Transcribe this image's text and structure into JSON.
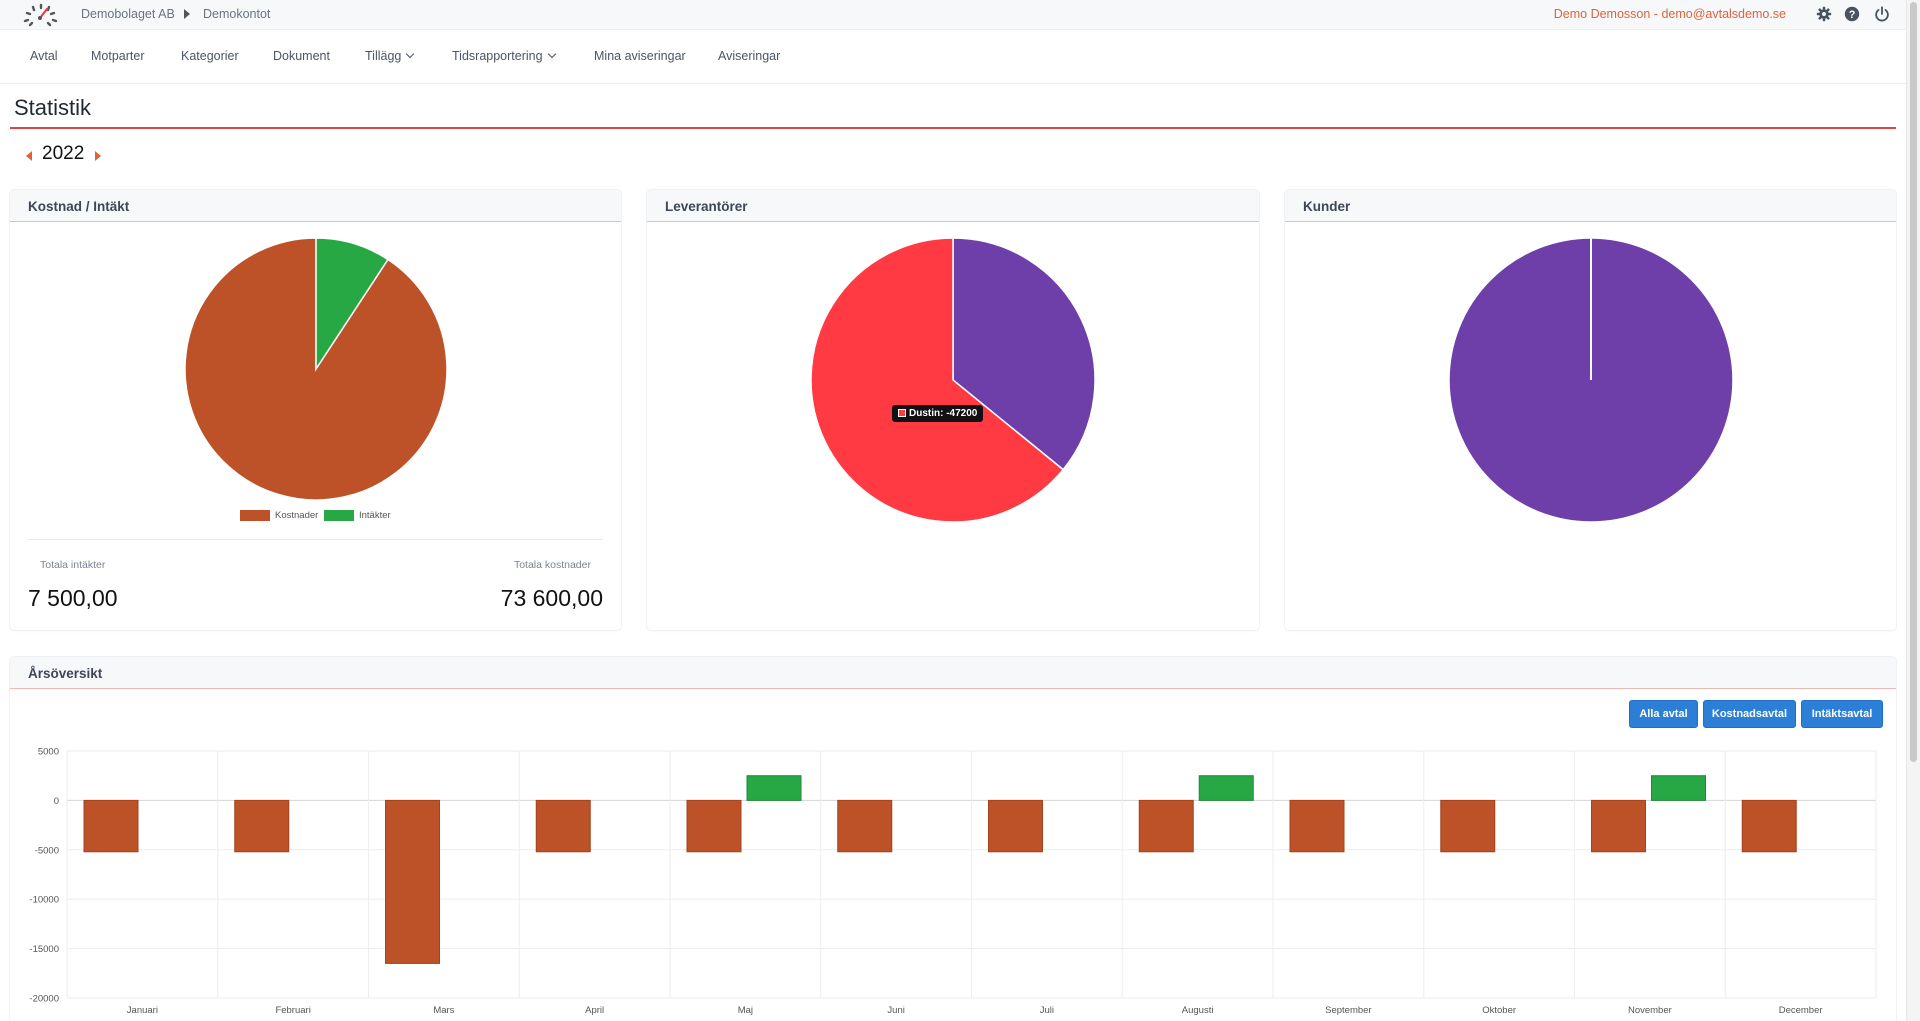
{
  "topbar": {
    "company": "Demobolaget AB",
    "account": "Demokontot",
    "user": "Demo Demosson - demo@avtalsdemo.se",
    "icons": [
      "gear-icon",
      "help-icon",
      "power-icon"
    ]
  },
  "nav": {
    "items": [
      {
        "label": "Avtal",
        "dropdown": false
      },
      {
        "label": "Motparter",
        "dropdown": false
      },
      {
        "label": "Kategorier",
        "dropdown": false
      },
      {
        "label": "Dokument",
        "dropdown": false
      },
      {
        "label": "Tillägg",
        "dropdown": true
      },
      {
        "label": "Tidsrapportering",
        "dropdown": true
      },
      {
        "label": "Mina aviseringar",
        "dropdown": false
      },
      {
        "label": "Aviseringar",
        "dropdown": false
      }
    ]
  },
  "page": {
    "title": "Statistik",
    "year": "2022"
  },
  "cards": {
    "cost_income": {
      "title": "Kostnad / Intäkt",
      "total_income_label": "Totala intäkter",
      "total_income_value": "7 500,00",
      "total_cost_label": "Totala kostnader",
      "total_cost_value": "73 600,00"
    },
    "suppliers": {
      "title": "Leverantörer",
      "tooltip": "Dustin: -47200"
    },
    "customers": {
      "title": "Kunder"
    },
    "year_overview": {
      "title": "Årsöversikt",
      "buttons": [
        "Alla avtal",
        "Kostnadsavtal",
        "Intäktsavtal"
      ]
    }
  },
  "colors": {
    "accent": "#e04343",
    "cost": "#bd5127",
    "income": "#28a745",
    "supplier_red": "#ff3a43",
    "purple": "#6e3fa8",
    "button": "#2b7fd6"
  },
  "chart_data": [
    {
      "type": "pie",
      "labels": [
        "Kostnader",
        "Intäkter"
      ],
      "values": [
        73600,
        7500
      ],
      "colors": [
        "#bd5127",
        "#28a745"
      ],
      "legend": "bottom"
    },
    {
      "type": "pie",
      "labels": [
        "Dustin",
        ""
      ],
      "values": [
        47200,
        26400
      ],
      "colors": [
        "#ff3a43",
        "#6e3fa8"
      ],
      "tooltip": "Dustin: -47200"
    },
    {
      "type": "pie",
      "labels": [
        ""
      ],
      "values": [
        7500
      ],
      "colors": [
        "#6e3fa8"
      ]
    },
    {
      "type": "bar",
      "categories": [
        "Januari",
        "Februari",
        "Mars",
        "April",
        "Maj",
        "Juni",
        "Juli",
        "Augusti",
        "September",
        "Oktober",
        "November",
        "December"
      ],
      "series": [
        {
          "values": [
            -5200,
            -5200,
            -16500,
            -5200,
            -5200,
            -5200,
            -5200,
            -5200,
            -5200,
            -5200,
            -5200,
            -5200
          ],
          "color": "#bd5127"
        },
        {
          "values": [
            0,
            0,
            0,
            0,
            2500,
            0,
            0,
            2500,
            0,
            0,
            2500,
            0
          ],
          "color": "#28a745"
        }
      ],
      "ylim": [
        -20000,
        5000
      ],
      "yticks": [
        5000,
        0,
        -5000,
        -10000,
        -15000,
        -20000
      ],
      "grid": true
    }
  ]
}
